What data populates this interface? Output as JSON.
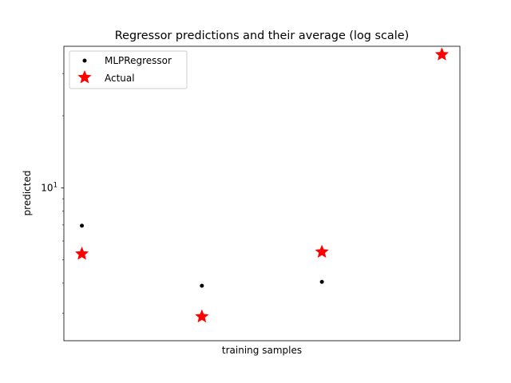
{
  "chart_data": {
    "type": "scatter",
    "title": "Regressor predictions and their average (log scale)",
    "xlabel": "training samples",
    "ylabel": "predicted",
    "yscale": "log",
    "xlim": [
      -0.15,
      3.15
    ],
    "ylim": [
      2.3,
      39
    ],
    "x_ticks_shown": false,
    "y_major_ticks": [
      {
        "value": 10,
        "base": "10",
        "exp": "1"
      }
    ],
    "y_minor_ticks": [
      3,
      4,
      5,
      6,
      7,
      8,
      9,
      20,
      30
    ],
    "grid": false,
    "legend": {
      "position": "upper-left"
    },
    "series": [
      {
        "name": "MLPRegressor",
        "marker": "dot",
        "color": "#000000",
        "x": [
          0,
          1,
          2
        ],
        "y": [
          6.95,
          3.9,
          4.05
        ]
      },
      {
        "name": "Actual",
        "marker": "star",
        "color": "#ff0000",
        "x": [
          0,
          1,
          2,
          3
        ],
        "y": [
          5.3,
          2.9,
          5.4,
          36
        ]
      }
    ]
  }
}
